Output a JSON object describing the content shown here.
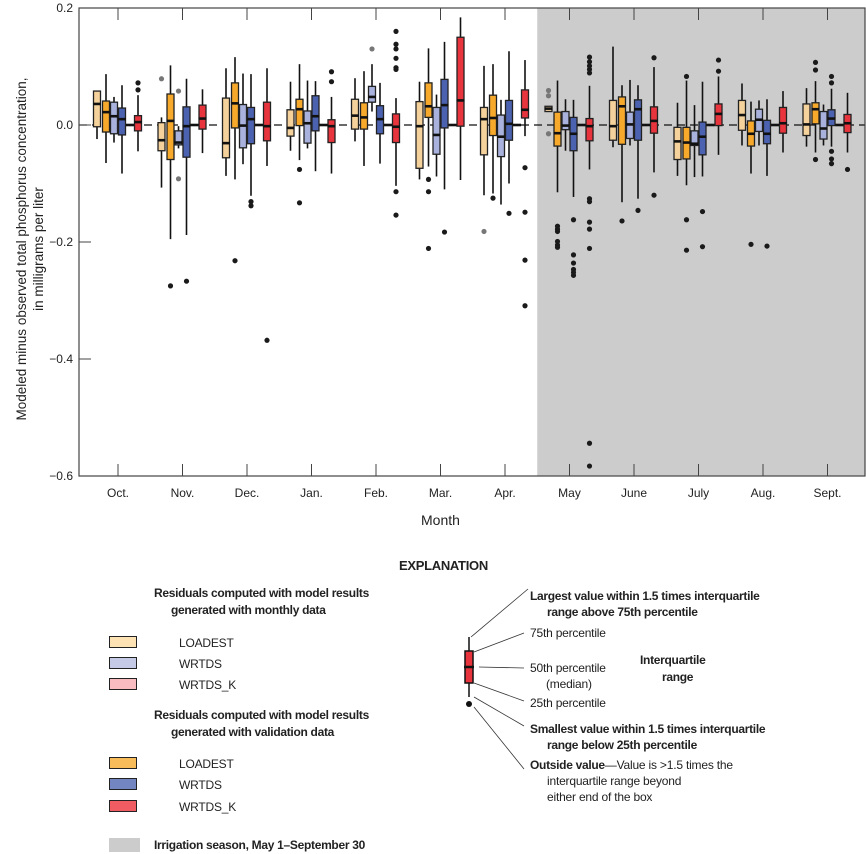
{
  "chart_data": {
    "type": "box",
    "xlabel": "Month",
    "ylabel_lines": [
      "Modeled minus observed total phosphorus concentration,",
      "in milligrams per liter"
    ],
    "ylim": [
      -0.6,
      0.2
    ],
    "yticks": [
      0.2,
      0.0,
      -0.2,
      -0.4,
      -0.6
    ],
    "ytick_labels": [
      "0.2",
      "0.0",
      "−0.2",
      "−0.4",
      "−0.6"
    ],
    "reference_line": 0,
    "categories": [
      "Oct.",
      "Nov.",
      "Dec.",
      "Jan.",
      "Feb.",
      "Mar.",
      "Apr.",
      "May",
      "June",
      "July",
      "Aug.",
      "Sept."
    ],
    "shaded_region": {
      "from": "May",
      "to": "Sept.",
      "color": "#cccccc"
    },
    "box_format": [
      "whisker_low",
      "q1",
      "median",
      "q3",
      "whisker_high",
      "outliers"
    ],
    "series": [
      {
        "name": "LOADEST",
        "group": "monthly",
        "color": "#f5d29b",
        "outlier_color": "#777777",
        "boxes": [
          [
            -0.024,
            -0.003,
            0.036,
            0.058,
            0.058,
            []
          ],
          [
            -0.107,
            -0.044,
            -0.026,
            0.004,
            0.013,
            [
              0.079
            ]
          ],
          [
            -0.087,
            -0.056,
            -0.031,
            0.046,
            0.097,
            []
          ],
          [
            -0.044,
            -0.019,
            -0.005,
            0.026,
            0.074,
            []
          ],
          [
            -0.028,
            -0.007,
            0.016,
            0.044,
            0.08,
            []
          ],
          [
            -0.093,
            -0.074,
            -0.002,
            0.04,
            0.074,
            []
          ],
          [
            -0.12,
            -0.051,
            0.01,
            0.03,
            0.101,
            [
              -0.182
            ]
          ],
          [
            0.023,
            0.023,
            0.028,
            0.032,
            0.032,
            [
              0.059,
              0.05,
              -0.015
            ]
          ],
          [
            -0.038,
            -0.026,
            -0.002,
            0.042,
            0.134,
            []
          ],
          [
            -0.087,
            -0.059,
            -0.028,
            -0.004,
            0.038,
            []
          ],
          [
            -0.035,
            -0.009,
            0.017,
            0.042,
            0.071,
            []
          ],
          [
            -0.037,
            -0.018,
            0.001,
            0.036,
            0.063,
            []
          ]
        ]
      },
      {
        "name": "LOADEST",
        "group": "validation",
        "color": "#f7a92c",
        "outlier_color": "#1a1a1a",
        "boxes": [
          [
            -0.065,
            -0.012,
            0.022,
            0.041,
            0.087,
            []
          ],
          [
            -0.195,
            -0.059,
            0.007,
            0.053,
            0.102,
            [
              -0.275
            ]
          ],
          [
            -0.093,
            -0.005,
            0.037,
            0.072,
            0.116,
            [
              -0.232
            ]
          ],
          [
            -0.06,
            -0.001,
            0.027,
            0.044,
            0.104,
            [
              -0.076,
              -0.133
            ]
          ],
          [
            -0.07,
            -0.007,
            0.013,
            0.038,
            0.092,
            []
          ],
          [
            -0.071,
            0.013,
            0.032,
            0.072,
            0.131,
            [
              -0.093,
              -0.114,
              -0.211
            ]
          ],
          [
            -0.117,
            -0.018,
            0.012,
            0.051,
            0.104,
            [
              -0.125
            ]
          ],
          [
            -0.115,
            -0.036,
            -0.014,
            0.022,
            0.076,
            [
              -0.173,
              -0.178,
              -0.182,
              -0.199,
              -0.205,
              -0.209
            ]
          ],
          [
            -0.132,
            -0.033,
            0.032,
            0.048,
            0.068,
            [
              -0.164
            ]
          ],
          [
            -0.103,
            -0.058,
            -0.03,
            -0.004,
            0.076,
            [
              0.083,
              -0.162,
              -0.214
            ]
          ],
          [
            -0.083,
            -0.036,
            -0.015,
            0.007,
            0.04,
            [
              -0.204
            ]
          ],
          [
            -0.047,
            0.002,
            0.027,
            0.038,
            0.075,
            [
              0.107,
              0.094,
              -0.059
            ]
          ]
        ]
      },
      {
        "name": "WRTDS",
        "group": "monthly",
        "color": "#a8b2dc",
        "outlier_color": "#777777",
        "boxes": [
          [
            -0.03,
            -0.015,
            0.015,
            0.039,
            0.048,
            []
          ],
          [
            -0.04,
            -0.034,
            -0.03,
            -0.01,
            -0.002,
            [
              0.058,
              -0.092
            ]
          ],
          [
            -0.067,
            -0.039,
            -0.001,
            0.035,
            0.088,
            []
          ],
          [
            -0.04,
            -0.031,
            0.003,
            0.024,
            0.076,
            []
          ],
          [
            0.023,
            0.039,
            0.048,
            0.066,
            0.104,
            [
              0.13
            ]
          ],
          [
            -0.088,
            -0.05,
            -0.017,
            0.03,
            0.052,
            []
          ],
          [
            -0.136,
            -0.054,
            -0.02,
            0.017,
            0.043,
            []
          ],
          [
            -0.044,
            -0.008,
            -0.001,
            0.023,
            0.044,
            []
          ],
          [
            -0.035,
            -0.023,
            0.001,
            0.022,
            0.077,
            []
          ],
          [
            -0.089,
            -0.035,
            -0.032,
            -0.01,
            0.034,
            []
          ],
          [
            -0.035,
            -0.011,
            0.009,
            0.027,
            0.042,
            []
          ],
          [
            -0.035,
            -0.024,
            -0.006,
            0.023,
            0.035,
            []
          ]
        ]
      },
      {
        "name": "WRTDS",
        "group": "validation",
        "color": "#4a62b0",
        "outlier_color": "#1a1a1a",
        "boxes": [
          [
            -0.083,
            -0.017,
            0.01,
            0.029,
            0.068,
            []
          ],
          [
            -0.188,
            -0.055,
            -0.002,
            0.031,
            0.079,
            [
              -0.267
            ]
          ],
          [
            -0.121,
            -0.032,
            0.01,
            0.03,
            0.087,
            [
              -0.131,
              -0.138
            ]
          ],
          [
            -0.079,
            -0.01,
            0.015,
            0.05,
            0.075,
            []
          ],
          [
            -0.066,
            -0.015,
            0.01,
            0.033,
            0.072,
            []
          ],
          [
            -0.11,
            -0.005,
            0.034,
            0.078,
            0.142,
            [
              -0.183
            ]
          ],
          [
            -0.1,
            -0.026,
            0.002,
            0.042,
            0.126,
            [
              -0.151
            ]
          ],
          [
            -0.123,
            -0.044,
            -0.015,
            0.013,
            0.043,
            [
              -0.162,
              -0.222,
              -0.236,
              -0.247,
              -0.252,
              -0.257
            ]
          ],
          [
            -0.126,
            -0.026,
            0.027,
            0.043,
            0.068,
            [
              -0.146
            ]
          ],
          [
            -0.088,
            -0.051,
            -0.02,
            0.005,
            0.074,
            [
              -0.148,
              -0.208
            ]
          ],
          [
            -0.087,
            -0.032,
            -0.015,
            0.008,
            0.044,
            [
              -0.207
            ]
          ],
          [
            -0.037,
            -0.001,
            0.011,
            0.026,
            0.062,
            [
              0.083,
              0.072,
              -0.045,
              -0.058,
              -0.066
            ]
          ]
        ]
      },
      {
        "name": "WRTDS_K",
        "group": "monthly",
        "color": "#f6b5b8",
        "outlier_color": "#777777",
        "boxes": [
          [
            0,
            0,
            0,
            0,
            0,
            []
          ],
          [
            0,
            0,
            0,
            0,
            0,
            []
          ],
          [
            0,
            0,
            0,
            0,
            0,
            []
          ],
          [
            0,
            0,
            0,
            0,
            0,
            []
          ],
          [
            0,
            0,
            0,
            0,
            0,
            []
          ],
          [
            0,
            0,
            0,
            0,
            0,
            []
          ],
          [
            0,
            0,
            0,
            0,
            0,
            []
          ],
          [
            0,
            0,
            0,
            0,
            0,
            []
          ],
          [
            0,
            0,
            0,
            0,
            0,
            []
          ],
          [
            0,
            0,
            0,
            0,
            0,
            []
          ],
          [
            0,
            0,
            0,
            0,
            0,
            []
          ],
          [
            0,
            0,
            0,
            0,
            0,
            []
          ]
        ]
      },
      {
        "name": "WRTDS_K",
        "group": "validation",
        "color": "#e8343c",
        "outlier_color": "#1a1a1a",
        "boxes": [
          [
            -0.045,
            -0.01,
            0.005,
            0.016,
            0.051,
            [
              0.072,
              0.06
            ]
          ],
          [
            -0.048,
            -0.007,
            0.011,
            0.034,
            0.061,
            []
          ],
          [
            -0.07,
            -0.027,
            -0.002,
            0.039,
            0.097,
            [
              -0.368
            ]
          ],
          [
            -0.083,
            -0.03,
            -0.002,
            0.009,
            0.048,
            [
              0.091,
              0.074
            ]
          ],
          [
            -0.104,
            -0.03,
            -0.003,
            0.019,
            0.046,
            [
              0.16,
              0.138,
              0.13,
              0.114,
              0.098,
              0.095,
              -0.114,
              -0.154
            ]
          ],
          [
            -0.094,
            -0.002,
            0.042,
            0.15,
            0.184,
            []
          ],
          [
            -0.019,
            0.012,
            0.026,
            0.06,
            0.111,
            [
              -0.073,
              -0.149,
              -0.231,
              -0.309
            ]
          ],
          [
            -0.076,
            -0.027,
            -0.002,
            0.011,
            0.067,
            [
              0.116,
              0.108,
              0.101,
              0.095,
              0.089,
              -0.126,
              -0.131,
              -0.166,
              -0.178,
              -0.211,
              -0.544,
              -0.583
            ]
          ],
          [
            -0.081,
            -0.014,
            0.007,
            0.031,
            0.099,
            [
              0.115,
              -0.12
            ]
          ],
          [
            -0.051,
            -0.001,
            0.019,
            0.036,
            0.083,
            [
              0.111,
              0.092
            ]
          ],
          [
            -0.047,
            -0.014,
            0.003,
            0.03,
            0.058,
            []
          ],
          [
            -0.047,
            -0.013,
            0.003,
            0.018,
            0.055,
            [
              -0.076
            ]
          ]
        ]
      }
    ]
  },
  "legend": {
    "title": "EXPLANATION",
    "monthly_heading": [
      "Residuals computed with model results",
      "generated with monthly data"
    ],
    "monthly_items": [
      {
        "label": "LOADEST",
        "color": "#fde2b4"
      },
      {
        "label": "WRTDS",
        "color": "#c5cbe6"
      },
      {
        "label": "WRTDS_K",
        "color": "#f9bcc0"
      }
    ],
    "validation_heading": [
      "Residuals computed with model results",
      "generated with validation data"
    ],
    "validation_items": [
      {
        "label": "LOADEST",
        "color": "#f8bd5a"
      },
      {
        "label": "WRTDS",
        "color": "#7386c2"
      },
      {
        "label": "WRTDS_K",
        "color": "#ef5d63"
      }
    ],
    "irrigation": {
      "label": "Irrigation season, May 1–September 30",
      "color": "#cccccc"
    }
  },
  "key": {
    "largest": [
      "Largest value within 1.5 times interquartile",
      "range above 75th percentile"
    ],
    "p75": "75th percentile",
    "p50": [
      "50th percentile",
      "(median)"
    ],
    "p25": "25th percentile",
    "iqr": [
      "Interquartile",
      "range"
    ],
    "smallest": [
      "Smallest value within 1.5 times interquartile",
      "range below 25th percentile"
    ],
    "outside_bold": "Outside value",
    "outside_text": [
      "—Value is >1.5 times the",
      "interquartile range beyond",
      "either end of the box"
    ],
    "box_color": "#e8343c"
  }
}
